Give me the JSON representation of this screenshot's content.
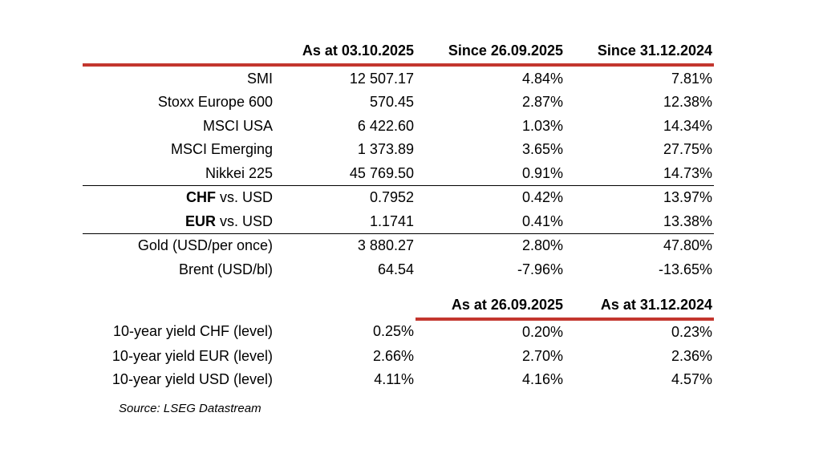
{
  "colors": {
    "accent_red": "#C3362E",
    "rule_black": "#000000",
    "text": "#000000",
    "background": "#ffffff"
  },
  "table": {
    "header1": {
      "label": "",
      "cols": [
        "As at 03.10.2025",
        "Since 26.09.2025",
        "Since 31.12.2024"
      ]
    },
    "sections": [
      {
        "name": "equity-indices",
        "rows": [
          {
            "label": "SMI",
            "values": [
              "12 507.17",
              "4.84%",
              "7.81%"
            ]
          },
          {
            "label": "Stoxx Europe 600",
            "values": [
              "570.45",
              "2.87%",
              "12.38%"
            ]
          },
          {
            "label": "MSCI USA",
            "values": [
              "6 422.60",
              "1.03%",
              "14.34%"
            ]
          },
          {
            "label": "MSCI Emerging",
            "values": [
              "1 373.89",
              "3.65%",
              "27.75%"
            ]
          },
          {
            "label": "Nikkei 225",
            "values": [
              "45 769.50",
              "0.91%",
              "14.73%"
            ]
          }
        ]
      },
      {
        "name": "currencies",
        "rows": [
          {
            "label_bold": "CHF",
            "label": " vs. USD",
            "values": [
              "0.7952",
              "0.42%",
              "13.97%"
            ]
          },
          {
            "label_bold": "EUR",
            "label": " vs. USD",
            "values": [
              "1.1741",
              "0.41%",
              "13.38%"
            ]
          }
        ]
      },
      {
        "name": "commodities",
        "rows": [
          {
            "label": "Gold (USD/per once)",
            "values": [
              "3 880.27",
              "2.80%",
              "47.80%"
            ]
          },
          {
            "label": "Brent (USD/bl)",
            "values": [
              "64.54",
              "-7.96%",
              "-13.65%"
            ]
          }
        ]
      }
    ],
    "header2": {
      "cols": [
        "As at 26.09.2025",
        "As at 31.12.2024"
      ]
    },
    "yields": {
      "name": "bond-yields",
      "rows": [
        {
          "label": "10-year yield CHF (level)",
          "values": [
            "0.25%",
            "0.20%",
            "0.23%"
          ]
        },
        {
          "label": "10-year yield EUR (level)",
          "values": [
            "2.66%",
            "2.70%",
            "2.36%"
          ]
        },
        {
          "label": "10-year yield USD (level)",
          "values": [
            "4.11%",
            "4.16%",
            "4.57%"
          ]
        }
      ]
    }
  },
  "source": "Source: LSEG Datastream"
}
